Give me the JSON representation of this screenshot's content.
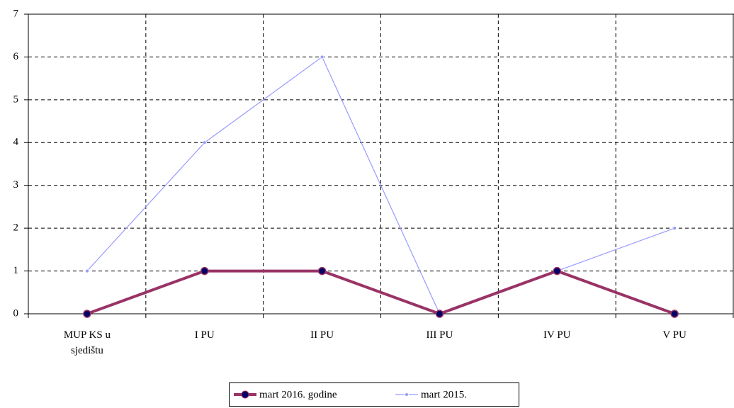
{
  "chart_data": {
    "type": "line",
    "categories": [
      "MUP KS u sjedištu",
      "I PU",
      "II PU",
      "III PU",
      "IV PU",
      "V PU"
    ],
    "series": [
      {
        "name": "mart 2016. godine",
        "color": "#993366",
        "values": [
          0,
          1,
          1,
          0,
          1,
          0
        ]
      },
      {
        "name": "mart 2015.",
        "color": "#9999ff",
        "values": [
          1,
          4,
          6,
          0,
          1,
          2
        ]
      }
    ],
    "ylim": [
      0,
      7
    ],
    "yticks": [
      0,
      1,
      2,
      3,
      4,
      5,
      6,
      7
    ],
    "grid": true,
    "legend": "bottom"
  }
}
